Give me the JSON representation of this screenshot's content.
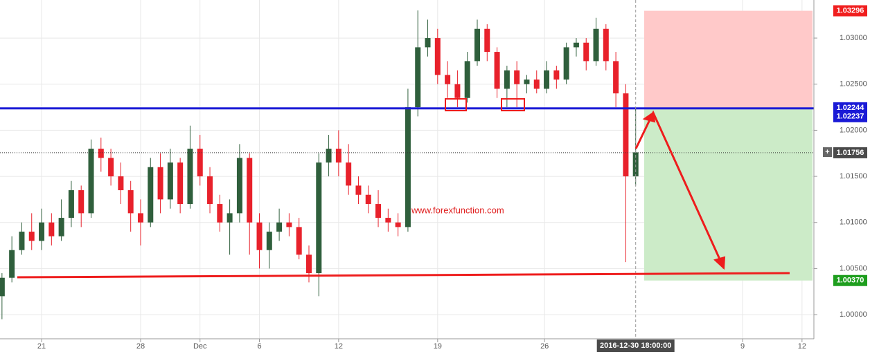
{
  "chart_data": {
    "type": "candlestick",
    "watermark": "www.forexfunction.com",
    "xlim": [
      -2.1,
      39
    ],
    "xticks": [
      {
        "value": 0,
        "label": "21"
      },
      {
        "value": 5,
        "label": "28"
      },
      {
        "value": 8,
        "label": "Dec"
      },
      {
        "value": 11,
        "label": "6"
      },
      {
        "value": 15,
        "label": "12"
      },
      {
        "value": 20,
        "label": "19"
      },
      {
        "value": 25.4,
        "label": "26"
      },
      {
        "value": 35.4,
        "label": "9"
      },
      {
        "value": 38.4,
        "label": "12"
      }
    ],
    "ylim": [
      0.99738,
      1.03413
    ],
    "yticks": [
      {
        "value": 1,
        "label": "1.00000"
      },
      {
        "value": 1.005,
        "label": "1.00500"
      },
      {
        "value": 1.01,
        "label": "1.01000"
      },
      {
        "value": 1.015,
        "label": "1.01500"
      },
      {
        "value": 1.02,
        "label": "1.02000"
      },
      {
        "value": 1.025,
        "label": "1.02500"
      },
      {
        "value": 1.03,
        "label": "1.03000"
      }
    ],
    "grid": true,
    "up_color": "#2f5f3c",
    "down_color": "#e8212b",
    "x": [
      -2,
      -1.5,
      -1,
      -0.5,
      0,
      0.5,
      1,
      1.5,
      2,
      2.5,
      3,
      3.5,
      4,
      4.5,
      5,
      5.5,
      6,
      6.5,
      7,
      7.5,
      8,
      8.5,
      9,
      9.5,
      10,
      10.5,
      11,
      11.5,
      12,
      12.5,
      13,
      13.5,
      14,
      14.5,
      15,
      15.5,
      16,
      16.5,
      17,
      17.5,
      18,
      18.5,
      19,
      19.5,
      20,
      20.5,
      21,
      21.5,
      22,
      22.5,
      23,
      23.5,
      24,
      24.5,
      25,
      25.5,
      26,
      26.5,
      27,
      27.5,
      28,
      28.5,
      29,
      29.5,
      30
    ],
    "open": [
      1.002,
      1.004,
      1.007,
      1.009,
      1.008,
      1.01,
      1.0085,
      1.0105,
      1.0135,
      1.011,
      1.018,
      1.017,
      1.015,
      1.0135,
      1.011,
      1.01,
      1.016,
      1.0125,
      1.0165,
      1.012,
      1.018,
      1.015,
      1.012,
      1.01,
      1.011,
      1.017,
      1.01,
      1.007,
      1.009,
      1.01,
      1.0095,
      1.0065,
      1.0045,
      1.0165,
      1.018,
      1.0165,
      1.014,
      1.013,
      1.012,
      1.0105,
      1.01,
      1.0095,
      1.0225,
      1.029,
      1.03,
      1.026,
      1.025,
      1.0235,
      1.0275,
      1.031,
      1.0285,
      1.0245,
      1.0265,
      1.025,
      1.0255,
      1.0245,
      1.0265,
      1.0255,
      1.029,
      1.0295,
      1.0275,
      1.031,
      1.0275,
      1.024,
      1.015
    ],
    "high": [
      1.0045,
      1.0085,
      1.01,
      1.011,
      1.0115,
      1.011,
      1.0125,
      1.0145,
      1.014,
      1.019,
      1.0192,
      1.018,
      1.0165,
      1.0145,
      1.0125,
      1.017,
      1.0175,
      1.018,
      1.017,
      1.0205,
      1.0195,
      1.016,
      1.013,
      1.0125,
      1.0185,
      1.0175,
      1.011,
      1.01,
      1.0115,
      1.011,
      1.0105,
      1.0075,
      1.0175,
      1.0195,
      1.02,
      1.0185,
      1.015,
      1.014,
      1.0135,
      1.0115,
      1.011,
      1.0245,
      1.033,
      1.032,
      1.031,
      1.0275,
      1.0265,
      1.0285,
      1.032,
      1.0315,
      1.029,
      1.027,
      1.0275,
      1.026,
      1.0265,
      1.0275,
      1.027,
      1.0295,
      1.03,
      1.03,
      1.0322,
      1.0315,
      1.0285,
      1.025,
      1.0225
    ],
    "low": [
      0.9995,
      1.0035,
      1.0065,
      1.007,
      1.007,
      1.0075,
      1.008,
      1.0095,
      1.0095,
      1.0105,
      1.0155,
      1.014,
      1.012,
      1.009,
      1.0075,
      1.0095,
      1.011,
      1.0115,
      1.011,
      1.0115,
      1.014,
      1.011,
      1.009,
      1.0065,
      1.01,
      1.0065,
      1.005,
      1.005,
      1.008,
      1.0085,
      1.006,
      1.0035,
      1.002,
      1.015,
      1.015,
      1.013,
      1.012,
      1.011,
      1.0095,
      1.009,
      1.0085,
      1.009,
      1.0215,
      1.028,
      1.025,
      1.0235,
      1.0225,
      1.023,
      1.027,
      1.0275,
      1.0235,
      1.0225,
      1.0225,
      1.024,
      1.024,
      1.024,
      1.0245,
      1.025,
      1.028,
      1.0265,
      1.027,
      1.0265,
      1.0225,
      1.0057,
      1.014
    ],
    "close": [
      1.004,
      1.007,
      1.009,
      1.008,
      1.01,
      1.0085,
      1.0105,
      1.0135,
      1.011,
      1.018,
      1.017,
      1.015,
      1.0135,
      1.011,
      1.01,
      1.016,
      1.0125,
      1.0165,
      1.012,
      1.018,
      1.015,
      1.012,
      1.01,
      1.011,
      1.017,
      1.01,
      1.007,
      1.009,
      1.01,
      1.0095,
      1.0065,
      1.0045,
      1.0165,
      1.018,
      1.0165,
      1.014,
      1.013,
      1.012,
      1.0105,
      1.01,
      1.0095,
      1.0225,
      1.029,
      1.03,
      1.026,
      1.025,
      1.0235,
      1.0275,
      1.031,
      1.0285,
      1.0245,
      1.0265,
      1.025,
      1.0255,
      1.0245,
      1.0265,
      1.0255,
      1.029,
      1.0295,
      1.0275,
      1.031,
      1.0275,
      1.024,
      1.015,
      1.0176
    ],
    "crosshair": {
      "x": {
        "value": 30,
        "label": "2016-12-30 18:00:00"
      },
      "y": {
        "value": 1.01756,
        "label": "1.01756"
      }
    },
    "horizontal_line": {
      "value": 1.02237,
      "label": "1.02237",
      "color": "#1a1ad6"
    },
    "price_labels": [
      {
        "value": 1.03296,
        "label": "1.03296",
        "color": "#f01e1e"
      },
      {
        "value": 1.02244,
        "label": "1.02244",
        "color": "#1a1ad6"
      },
      {
        "value": 1.0037,
        "label": "1.00370",
        "color": "#1e9e1e"
      }
    ]
  }
}
